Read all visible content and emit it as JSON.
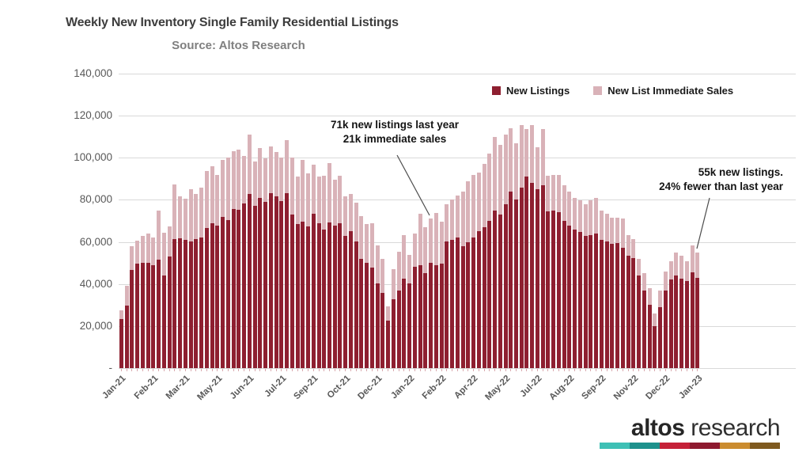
{
  "header": {
    "title": "Weekly New Inventory Single Family Residential Listings",
    "subtitle": "Source: Altos Research"
  },
  "legend": {
    "items": [
      {
        "label": "New Listings",
        "color": "#8e1f30"
      },
      {
        "label": "New List Immediate Sales",
        "color": "#d9b2b8"
      }
    ]
  },
  "annotations": {
    "last_year": {
      "line1": "71k new listings last year",
      "line2": "21k immediate sales"
    },
    "current": {
      "line1": "55k new listings.",
      "line2": "24% fewer than last year"
    }
  },
  "y_axis": {
    "tick_labels": [
      "140,000",
      "120,000",
      "100,000",
      "80,000",
      "60,000",
      "40,000",
      "20,000",
      "-"
    ],
    "tick_values_thousands": [
      140,
      120,
      100,
      80,
      60,
      40,
      20,
      0
    ]
  },
  "x_axis": {
    "tick_labels": [
      "Jan-21",
      "Feb-21",
      "Mar-21",
      "May-21",
      "Jun-21",
      "Jul-21",
      "Sep-21",
      "Oct-21",
      "Dec-21",
      "Jan-22",
      "Feb-22",
      "Apr-22",
      "May-22",
      "Jul-22",
      "Aug-22",
      "Sep-22",
      "Nov-22",
      "Dec-22",
      "Jan-23"
    ],
    "label_every_n_bars": 6
  },
  "logo": {
    "bold_text": "altos",
    "regular_text": "research",
    "bar_colors": [
      "#3ec0b5",
      "#1e918c",
      "#c52138",
      "#8e1a2f",
      "#cb8c2f",
      "#7f5a1f"
    ]
  },
  "colors": {
    "new_listings": "#8e1f30",
    "immediate_sales": "#d9b2b8",
    "gridline": "#d9d9d9",
    "axis_text": "#595959",
    "leader_line": "#4d4d4d"
  },
  "chart_data": {
    "type": "bar",
    "stacked": true,
    "title": "Weekly New Inventory Single Family Residential Listings",
    "subtitle": "Source: Altos Research",
    "x_unit": "week",
    "y_unit": "listings",
    "values_unit": "thousands",
    "ylim": [
      0,
      140000
    ],
    "grid": true,
    "legend_position": "top-right",
    "x_range": "Jan-21 to Jan-23, weekly bars",
    "x_tick_labels": [
      "Jan-21",
      "Feb-21",
      "Mar-21",
      "May-21",
      "Jun-21",
      "Jul-21",
      "Sep-21",
      "Oct-21",
      "Dec-21",
      "Jan-22",
      "Feb-22",
      "Apr-22",
      "May-22",
      "Jul-22",
      "Aug-22",
      "Sep-22",
      "Nov-22",
      "Dec-22",
      "Jan-23"
    ],
    "series": [
      {
        "name": "New Listings",
        "color": "#8e1f30",
        "values_thousands": [
          23.3,
          29.8,
          46.7,
          49.6,
          50,
          50.2,
          48.9,
          51.5,
          44.1,
          53.1,
          61.2,
          61.9,
          61.1,
          60.4,
          61.2,
          62.1,
          66.5,
          69,
          67.8,
          72,
          70.3,
          75.7,
          75.2,
          78.4,
          82.7,
          77.2,
          80.8,
          79,
          83,
          81.5,
          79.6,
          83,
          73,
          68.5,
          69.5,
          67.5,
          73.3,
          68.8,
          65.9,
          69.3,
          67.8,
          68.8,
          63,
          65.3,
          60.3,
          52,
          50.2,
          47.7,
          40.2,
          35.8,
          22.6,
          32.7,
          37,
          42.6,
          40.2,
          48.3,
          48.9,
          45.2,
          50,
          48.9,
          49.6,
          60.2,
          60.9,
          62.1,
          58,
          60,
          62,
          65,
          67,
          70,
          75,
          73,
          78,
          84,
          80,
          86,
          91,
          88,
          85,
          87,
          74.5,
          75,
          74,
          70,
          67.7,
          66,
          64.7,
          63,
          63.1,
          64,
          61,
          60.2,
          59,
          59.6,
          57.1,
          53.4,
          52.2,
          44,
          37,
          30,
          20,
          29,
          37,
          42,
          44,
          42.5,
          41.5,
          45.5,
          43
        ]
      },
      {
        "name": "New List Immediate Sales",
        "color": "#d9b2b8",
        "values_thousands": [
          4.2,
          9.2,
          11.3,
          10.9,
          13,
          13.8,
          13.1,
          23.5,
          20.4,
          14.4,
          26,
          19.7,
          19.6,
          24.5,
          21.6,
          23.6,
          27.3,
          27,
          24.2,
          27,
          29.7,
          27.6,
          28.6,
          22.3,
          28.2,
          21.1,
          23.7,
          20.8,
          22.3,
          21.3,
          20.5,
          25.5,
          27,
          22.5,
          29.5,
          25,
          23.3,
          22.2,
          25.4,
          28.1,
          21.6,
          22.5,
          18.8,
          17.5,
          18.5,
          20.2,
          18.2,
          21.2,
          18.1,
          16.3,
          6.9,
          14.3,
          18.2,
          20.7,
          13.7,
          15.7,
          24.5,
          21.9,
          21,
          24.9,
          20.1,
          17.8,
          19.1,
          19.9,
          26,
          29,
          30,
          28,
          30,
          32,
          35,
          33,
          33,
          30,
          27,
          29.5,
          22.5,
          27.5,
          20,
          26.5,
          17,
          17,
          17.9,
          17,
          16.3,
          15,
          15,
          15,
          16.6,
          17,
          14,
          13.2,
          12.5,
          11.9,
          14,
          9.9,
          9.2,
          8,
          8,
          8,
          6,
          8,
          9,
          9,
          11,
          11,
          9.5,
          13,
          12
        ]
      }
    ]
  }
}
